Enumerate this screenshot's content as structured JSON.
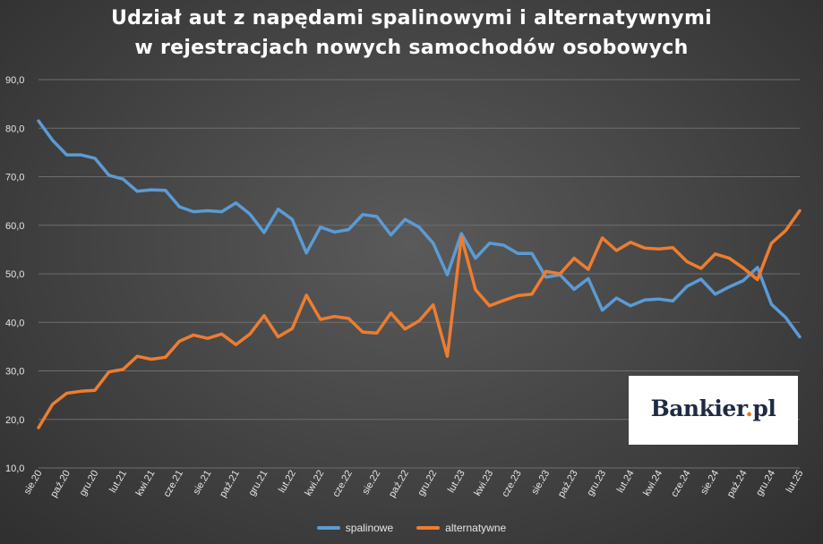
{
  "colors": {
    "spalinowe": "#5b9bd5",
    "alternatywne": "#ed7d31",
    "grid": "#6e6e6e",
    "text": "#e6e6e6"
  },
  "brand": {
    "name": "Bankier",
    "dot": ".",
    "tld": "pl"
  },
  "chart_data": {
    "type": "line",
    "title": "Udział aut z napędami spalinowymi i alternatywnymi",
    "subtitle": "w rejestracjach nowych samochodów osobowych",
    "xlabel": "",
    "ylabel": "",
    "ylim": [
      10,
      90
    ],
    "yticks": [
      "10,0",
      "20,0",
      "30,0",
      "40,0",
      "50,0",
      "60,0",
      "70,0",
      "80,0",
      "90,0"
    ],
    "grid": true,
    "legend_position": "bottom",
    "x": [
      "sie.20",
      "wrz.20",
      "paź.20",
      "lis.20",
      "gru.20",
      "sty.21",
      "lut.21",
      "mar.21",
      "kwi.21",
      "maj.21",
      "cze.21",
      "lip.21",
      "sie.21",
      "wrz.21",
      "paź.21",
      "lis.21",
      "gru.21",
      "sty.22",
      "lut.22",
      "mar.22",
      "kwi.22",
      "maj.22",
      "cze.22",
      "lip.22",
      "sie.22",
      "wrz.22",
      "paź.22",
      "lis.22",
      "gru.22",
      "sty.23",
      "lut.23",
      "mar.23",
      "kwi.23",
      "maj.23",
      "cze.23",
      "lip.23",
      "sie.23",
      "wrz.23",
      "paź.23",
      "lis.23",
      "gru.23",
      "sty.24",
      "lut.24",
      "mar.24",
      "kwi.24",
      "maj.24",
      "cze.24",
      "lip.24",
      "sie.24",
      "wrz.24",
      "paź.24",
      "lis.24",
      "gru.24",
      "sty.25",
      "lut.25"
    ],
    "xtick_labels": [
      "sie.20",
      "paź.20",
      "gru.20",
      "lut.21",
      "kwi.21",
      "cze.21",
      "sie.21",
      "paź.21",
      "gru.21",
      "lut.22",
      "kwi.22",
      "cze.22",
      "sie.22",
      "paź.22",
      "gru.22",
      "lut.23",
      "kwi.23",
      "cze.23",
      "sie.23",
      "paź.23",
      "gru.23",
      "lut.24",
      "kwi.24",
      "cze.24",
      "sie.24",
      "paź.24",
      "gru.24",
      "lut.25"
    ],
    "series": [
      {
        "name": "spalinowe",
        "values": [
          81.5,
          77.5,
          74.5,
          74.5,
          73.8,
          70.3,
          69.5,
          67.0,
          67.3,
          67.2,
          63.8,
          62.8,
          63.0,
          62.8,
          64.6,
          62.3,
          58.5,
          63.3,
          61.2,
          54.3,
          59.6,
          58.6,
          59.1,
          62.2,
          61.8,
          58.0,
          61.2,
          59.6,
          56.3,
          49.8,
          58.3,
          53.2,
          56.3,
          55.9,
          54.2,
          54.2,
          49.3,
          49.8,
          46.8,
          49.0,
          42.5,
          45.0,
          43.4,
          44.6,
          44.8,
          44.4,
          47.4,
          48.9,
          45.8,
          47.3,
          48.6,
          51.3,
          43.7,
          41.0,
          37.0
        ]
      },
      {
        "name": "alternatywne",
        "values": [
          18.3,
          23.1,
          25.4,
          25.8,
          26.0,
          29.8,
          30.3,
          33.0,
          32.4,
          32.8,
          36.1,
          37.4,
          36.7,
          37.6,
          35.4,
          37.6,
          41.4,
          37.0,
          38.7,
          45.6,
          40.6,
          41.2,
          40.8,
          38.0,
          37.8,
          41.9,
          38.6,
          40.3,
          43.6,
          33.0,
          57.6,
          46.7,
          43.4,
          44.5,
          45.5,
          45.8,
          50.5,
          50.0,
          53.2,
          50.9,
          57.4,
          54.8,
          56.5,
          55.3,
          55.1,
          55.4,
          52.5,
          51.1,
          54.1,
          53.2,
          51.2,
          48.8,
          56.3,
          58.9,
          63.0
        ]
      }
    ]
  }
}
